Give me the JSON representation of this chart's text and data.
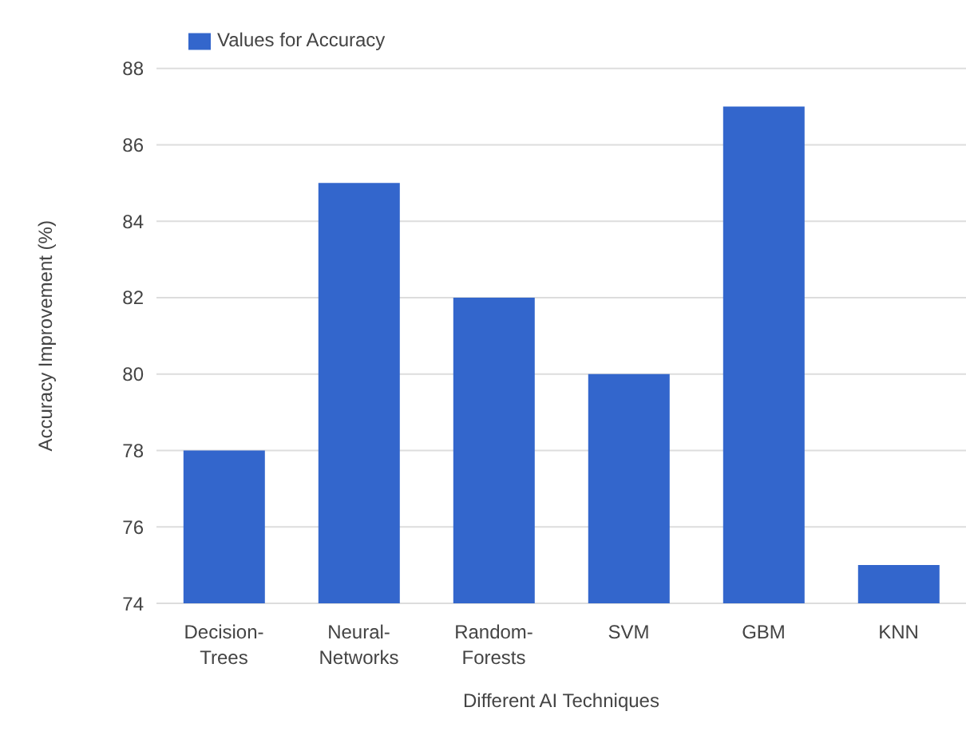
{
  "chart_data": {
    "type": "bar",
    "categories": [
      "Decision-Trees",
      "Neural-Networks",
      "Random-Forests",
      "SVM",
      "GBM",
      "KNN"
    ],
    "series": [
      {
        "name": "Values for Accuracy",
        "color": "#3366cc",
        "values": [
          78,
          85,
          82,
          80,
          87,
          75
        ]
      }
    ],
    "xlabel": "Different AI Techniques",
    "ylabel": "Accuracy Improvement (%)",
    "ylim": [
      74,
      88
    ],
    "yticks": [
      74,
      76,
      78,
      80,
      82,
      84,
      86,
      88
    ],
    "grid": "y",
    "legend": "top left"
  }
}
